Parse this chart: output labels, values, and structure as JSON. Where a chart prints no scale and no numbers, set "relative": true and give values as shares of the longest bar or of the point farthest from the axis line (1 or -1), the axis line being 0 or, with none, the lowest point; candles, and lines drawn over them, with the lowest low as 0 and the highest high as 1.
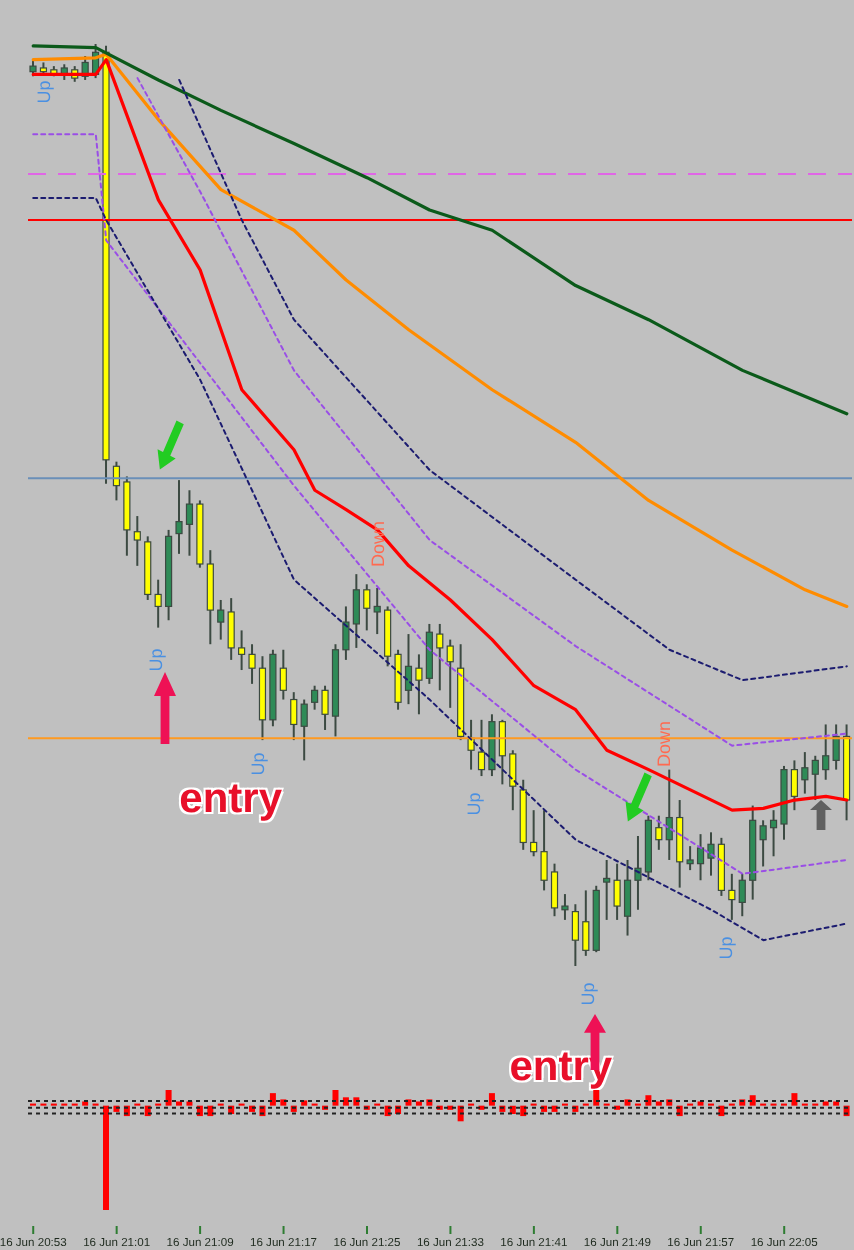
{
  "chart_data": [
    {
      "type": "candlestick",
      "relative": true,
      "tick_labels": "x",
      "categories": [
        "16 Jun 20:53",
        null,
        null,
        null,
        null,
        null,
        null,
        null,
        "16 Jun 21:01",
        null,
        null,
        null,
        null,
        null,
        null,
        null,
        "16 Jun 21:09",
        null,
        null,
        null,
        null,
        null,
        null,
        null,
        "16 Jun 21:17",
        null,
        null,
        null,
        null,
        null,
        null,
        null,
        "16 Jun 21:25",
        null,
        null,
        null,
        null,
        null,
        null,
        null,
        "16 Jun 21:33",
        null,
        null,
        null,
        null,
        null,
        null,
        null,
        "16 Jun 21:41",
        null,
        null,
        null,
        null,
        null,
        null,
        null,
        "16 Jun 21:49",
        null,
        null,
        null,
        null,
        null,
        null,
        null,
        "16 Jun 21:57",
        null,
        null,
        null,
        null,
        null,
        null,
        null,
        "16 Jun 22:05",
        null,
        null,
        null,
        null,
        null,
        null
      ],
      "ohlc": [
        [
          0.97,
          0.983,
          0.965,
          0.976
        ],
        [
          0.974,
          0.98,
          0.967,
          0.97
        ],
        [
          0.972,
          0.976,
          0.965,
          0.967
        ],
        [
          0.967,
          0.978,
          0.961,
          0.974
        ],
        [
          0.972,
          0.976,
          0.959,
          0.963
        ],
        [
          0.965,
          0.987,
          0.961,
          0.98
        ],
        [
          0.967,
          1.0,
          0.963,
          0.991
        ],
        [
          0.991,
          0.998,
          0.523,
          0.549
        ],
        [
          0.542,
          0.547,
          0.505,
          0.521
        ],
        [
          0.525,
          0.531,
          0.445,
          0.473
        ],
        [
          0.471,
          0.488,
          0.434,
          0.462
        ],
        [
          0.46,
          0.466,
          0.397,
          0.403
        ],
        [
          0.403,
          0.419,
          0.367,
          0.39
        ],
        [
          0.39,
          0.473,
          0.375,
          0.466
        ],
        [
          0.469,
          0.527,
          0.447,
          0.482
        ],
        [
          0.479,
          0.516,
          0.445,
          0.501
        ],
        [
          0.501,
          0.505,
          0.432,
          0.436
        ],
        [
          0.436,
          0.451,
          0.349,
          0.386
        ],
        [
          0.373,
          0.397,
          0.354,
          0.386
        ],
        [
          0.384,
          0.399,
          0.332,
          0.345
        ],
        [
          0.345,
          0.364,
          0.321,
          0.338
        ],
        [
          0.338,
          0.349,
          0.306,
          0.323
        ],
        [
          0.323,
          0.336,
          0.245,
          0.267
        ],
        [
          0.267,
          0.343,
          0.26,
          0.338
        ],
        [
          0.323,
          0.343,
          0.289,
          0.299
        ],
        [
          0.289,
          0.297,
          0.245,
          0.262
        ],
        [
          0.26,
          0.289,
          0.223,
          0.284
        ],
        [
          0.286,
          0.304,
          0.278,
          0.299
        ],
        [
          0.299,
          0.304,
          0.256,
          0.273
        ],
        [
          0.271,
          0.349,
          0.249,
          0.343
        ],
        [
          0.343,
          0.39,
          0.332,
          0.373
        ],
        [
          0.371,
          0.425,
          0.345,
          0.408
        ],
        [
          0.408,
          0.414,
          0.364,
          0.388
        ],
        [
          0.384,
          0.41,
          0.36,
          0.39
        ],
        [
          0.386,
          0.39,
          0.325,
          0.336
        ],
        [
          0.338,
          0.343,
          0.278,
          0.286
        ],
        [
          0.299,
          0.36,
          0.284,
          0.325
        ],
        [
          0.323,
          0.338,
          0.273,
          0.31
        ],
        [
          0.312,
          0.371,
          0.306,
          0.362
        ],
        [
          0.36,
          0.371,
          0.299,
          0.345
        ],
        [
          0.347,
          0.354,
          0.28,
          0.33
        ],
        [
          0.323,
          0.349,
          0.245,
          0.249
        ],
        [
          0.247,
          0.267,
          0.213,
          0.234
        ],
        [
          0.232,
          0.267,
          0.206,
          0.213
        ],
        [
          0.213,
          0.273,
          0.206,
          0.265
        ],
        [
          0.265,
          0.267,
          0.197,
          0.228
        ],
        [
          0.23,
          0.234,
          0.169,
          0.195
        ],
        [
          0.191,
          0.202,
          0.126,
          0.134
        ],
        [
          0.134,
          0.169,
          0.119,
          0.124
        ],
        [
          0.124,
          0.169,
          0.082,
          0.093
        ],
        [
          0.102,
          0.111,
          0.054,
          0.063
        ],
        [
          0.061,
          0.078,
          0.05,
          0.065
        ],
        [
          0.059,
          0.067,
          0.0,
          0.028
        ],
        [
          0.048,
          0.082,
          0.011,
          0.017
        ],
        [
          0.017,
          0.087,
          0.015,
          0.082
        ],
        [
          0.091,
          0.115,
          0.05,
          0.095
        ],
        [
          0.093,
          0.111,
          0.05,
          0.065
        ],
        [
          0.054,
          0.115,
          0.033,
          0.093
        ],
        [
          0.093,
          0.141,
          0.061,
          0.106
        ],
        [
          0.102,
          0.163,
          0.093,
          0.158
        ],
        [
          0.15,
          0.163,
          0.126,
          0.137
        ],
        [
          0.137,
          0.213,
          0.115,
          0.161
        ],
        [
          0.161,
          0.18,
          0.085,
          0.113
        ],
        [
          0.111,
          0.13,
          0.104,
          0.115
        ],
        [
          0.111,
          0.143,
          0.093,
          0.128
        ],
        [
          0.117,
          0.145,
          0.098,
          0.132
        ],
        [
          0.132,
          0.139,
          0.076,
          0.082
        ],
        [
          0.082,
          0.1,
          0.05,
          0.072
        ],
        [
          0.069,
          0.1,
          0.054,
          0.093
        ],
        [
          0.093,
          0.174,
          0.072,
          0.158
        ],
        [
          0.137,
          0.158,
          0.108,
          0.152
        ],
        [
          0.15,
          0.169,
          0.119,
          0.158
        ],
        [
          0.154,
          0.217,
          0.137,
          0.213
        ],
        [
          0.213,
          0.223,
          0.169,
          0.184
        ],
        [
          0.202,
          0.232,
          0.187,
          0.215
        ],
        [
          0.208,
          0.228,
          0.18,
          0.223
        ],
        [
          0.213,
          0.262,
          0.202,
          0.228
        ],
        [
          0.223,
          0.262,
          0.213,
          0.249
        ],
        [
          0.249,
          0.262,
          0.158,
          0.18
        ]
      ],
      "colors": [
        "#2e8b57",
        "#ffff00",
        "#ffff00",
        "#2e8b57",
        "#ffff00",
        "#2e8b57",
        "#2e8b57",
        "#ffff00",
        "#ffff00",
        "#ffff00",
        "#ffff00",
        "#ffff00",
        "#ffff00",
        "#2e8b57",
        "#2e8b57",
        "#2e8b57",
        "#ffff00",
        "#ffff00",
        "#2e8b57",
        "#ffff00",
        "#ffff00",
        "#ffff00",
        "#ffff00",
        "#2e8b57",
        "#ffff00",
        "#ffff00",
        "#2e8b57",
        "#2e8b57",
        "#ffff00",
        "#2e8b57",
        "#2e8b57",
        "#2e8b57",
        "#ffff00",
        "#2e8b57",
        "#ffff00",
        "#ffff00",
        "#2e8b57",
        "#ffff00",
        "#2e8b57",
        "#ffff00",
        "#ffff00",
        "#ffff00",
        "#ffff00",
        "#ffff00",
        "#2e8b57",
        "#ffff00",
        "#ffff00",
        "#ffff00",
        "#ffff00",
        "#ffff00",
        "#ffff00",
        "#2e8b57",
        "#ffff00",
        "#ffff00",
        "#2e8b57",
        "#2e8b57",
        "#ffff00",
        "#2e8b57",
        "#2e8b57",
        "#2e8b57",
        "#ffff00",
        "#2e8b57",
        "#ffff00",
        "#2e8b57",
        "#2e8b57",
        "#2e8b57",
        "#ffff00",
        "#ffff00",
        "#2e8b57",
        "#2e8b57",
        "#2e8b57",
        "#2e8b57",
        "#2e8b57",
        "#ffff00",
        "#2e8b57",
        "#2e8b57",
        "#2e8b57",
        "#2e8b57",
        "#ffff00"
      ],
      "series": [
        {
          "type": "line",
          "color": "#ff0000",
          "line_style": "solid",
          "values": [
            0.967,
            null,
            null,
            null,
            null,
            null,
            0.967,
            0.983,
            null,
            null,
            null,
            null,
            0.831,
            null,
            null,
            null,
            0.755,
            null,
            null,
            null,
            0.625,
            null,
            null,
            null,
            null,
            0.56,
            null,
            0.516,
            null,
            null,
            0.495,
            null,
            null,
            0.473,
            null,
            null,
            0.434,
            null,
            null,
            null,
            0.397,
            null,
            null,
            null,
            0.354,
            null,
            null,
            null,
            0.304,
            null,
            null,
            null,
            0.278,
            null,
            null,
            0.234,
            null,
            null,
            null,
            0.213,
            null,
            null,
            null,
            0.191,
            null,
            null,
            null,
            0.169,
            null,
            null,
            0.171,
            null,
            null,
            0.18,
            null,
            null,
            0.184,
            null,
            0.18
          ]
        },
        {
          "type": "line",
          "color": "#ff8c00",
          "line_style": "solid",
          "values": [
            0.983,
            null,
            null,
            null,
            null,
            null,
            0.985,
            0.989,
            null,
            null,
            null,
            null,
            0.918,
            null,
            null,
            null,
            null,
            null,
            0.842,
            null,
            null,
            null,
            null,
            null,
            null,
            0.798,
            null,
            null,
            null,
            null,
            0.744,
            null,
            null,
            null,
            null,
            null,
            0.69,
            null,
            null,
            null,
            null,
            null,
            null,
            null,
            0.625,
            null,
            null,
            null,
            null,
            null,
            null,
            null,
            0.568,
            null,
            null,
            null,
            null,
            null,
            null,
            0.505,
            null,
            null,
            null,
            null,
            null,
            null,
            null,
            0.451,
            null,
            null,
            null,
            null,
            null,
            null,
            0.408,
            null,
            null,
            null,
            0.39
          ]
        },
        {
          "type": "line",
          "color": "#0b5a1a",
          "line_style": "solid",
          "values": [
            0.998,
            null,
            null,
            null,
            null,
            null,
            0.996,
            null,
            null,
            null,
            null,
            null,
            0.961,
            null,
            null,
            null,
            null,
            null,
            0.928,
            null,
            null,
            null,
            null,
            null,
            null,
            0.892,
            null,
            null,
            null,
            null,
            null,
            null,
            0.855,
            null,
            null,
            null,
            null,
            null,
            0.82,
            null,
            null,
            null,
            null,
            null,
            0.798,
            null,
            null,
            null,
            null,
            null,
            null,
            null,
            0.738,
            null,
            null,
            null,
            null,
            null,
            null,
            0.701,
            null,
            null,
            null,
            null,
            null,
            null,
            null,
            null,
            0.646,
            null,
            null,
            null,
            null,
            null,
            null,
            null,
            null,
            null,
            0.599
          ]
        },
        {
          "type": "line",
          "color": "#9a4ee6",
          "line_style": "dotted",
          "values": [
            null,
            null,
            null,
            null,
            null,
            null,
            null,
            null,
            null,
            null,
            0.963,
            null,
            null,
            null,
            null,
            null,
            0.84,
            null,
            null,
            null,
            null,
            null,
            null,
            null,
            null,
            0.646,
            null,
            null,
            null,
            null,
            null,
            null,
            null,
            null,
            null,
            null,
            null,
            null,
            0.462,
            null,
            null,
            null,
            null,
            null,
            null,
            null,
            null,
            null,
            null,
            null,
            null,
            null,
            0.347,
            null,
            null,
            null,
            null,
            null,
            null,
            null,
            null,
            null,
            null,
            null,
            null,
            null,
            null,
            0.239,
            null,
            null,
            null,
            null,
            null,
            null,
            null,
            null,
            null,
            null,
            0.252
          ]
        },
        {
          "type": "line",
          "color": "#9a4ee6",
          "line_style": "dotted",
          "values": [
            0.902,
            null,
            null,
            null,
            null,
            null,
            0.902,
            0.787,
            null,
            null,
            null,
            null,
            null,
            null,
            null,
            null,
            null,
            null,
            null,
            null,
            null,
            null,
            null,
            null,
            null,
            0.521,
            null,
            null,
            null,
            null,
            null,
            null,
            null,
            null,
            null,
            null,
            null,
            null,
            0.343,
            null,
            null,
            null,
            null,
            null,
            null,
            null,
            null,
            null,
            null,
            null,
            null,
            null,
            0.213,
            null,
            null,
            null,
            null,
            null,
            null,
            null,
            null,
            null,
            null,
            null,
            null,
            null,
            null,
            null,
            0.1,
            null,
            null,
            null,
            null,
            null,
            null,
            null,
            null,
            null,
            0.115
          ]
        },
        {
          "type": "line",
          "color": "#1c1c70",
          "line_style": "dotted",
          "values": [
            null,
            null,
            null,
            null,
            null,
            null,
            null,
            null,
            null,
            null,
            null,
            null,
            null,
            null,
            0.961,
            null,
            null,
            null,
            null,
            null,
            0.809,
            null,
            null,
            null,
            null,
            0.701,
            null,
            null,
            null,
            null,
            null,
            null,
            null,
            null,
            null,
            null,
            null,
            null,
            0.538,
            null,
            null,
            null,
            null,
            null,
            null,
            null,
            null,
            null,
            null,
            null,
            null,
            null,
            0.419,
            null,
            null,
            null,
            null,
            null,
            null,
            null,
            null,
            0.343,
            null,
            null,
            null,
            null,
            null,
            null,
            0.31,
            null,
            null,
            null,
            null,
            null,
            null,
            null,
            null,
            null,
            0.325
          ]
        },
        {
          "type": "line",
          "color": "#1c1c70",
          "line_style": "dotted",
          "values": [
            0.833,
            null,
            null,
            null,
            null,
            null,
            0.833,
            0.809,
            null,
            null,
            null,
            null,
            null,
            null,
            null,
            null,
            0.636,
            null,
            null,
            null,
            null,
            null,
            null,
            null,
            null,
            0.419,
            null,
            null,
            null,
            null,
            null,
            null,
            null,
            null,
            null,
            null,
            null,
            null,
            0.289,
            null,
            null,
            null,
            null,
            null,
            null,
            null,
            null,
            null,
            null,
            null,
            null,
            null,
            0.137,
            null,
            null,
            null,
            null,
            null,
            null,
            null,
            null,
            null,
            null,
            null,
            null,
            0.061,
            null,
            null,
            null,
            null,
            0.028,
            null,
            null,
            null,
            null,
            null,
            null,
            null,
            0.046
          ]
        }
      ],
      "ref_lines": [
        {
          "axis": "y",
          "value": 0.859,
          "color": "#e066e6",
          "line_style": "dashed"
        },
        {
          "axis": "y",
          "value": 0.809,
          "color": "#ff0000",
          "line_style": "solid"
        },
        {
          "axis": "y",
          "value": 0.529,
          "color": "#6a8fb8",
          "line_style": "solid"
        },
        {
          "axis": "y",
          "value": 0.247,
          "color": "#ff9a20",
          "line_style": "solid"
        }
      ],
      "annotations": [
        "Up",
        "Up",
        "Up",
        "Up",
        "Up",
        "Up",
        "Down",
        "Down",
        "entry",
        "entry"
      ]
    },
    {
      "type": "bar",
      "relative": true,
      "tick_labels": false,
      "color": "#ff0000",
      "categories": [
        null,
        null,
        null,
        null,
        null,
        null,
        null,
        null,
        null,
        null,
        null,
        null,
        null,
        null,
        null,
        null,
        null,
        null,
        null,
        null,
        null,
        null,
        null,
        null,
        null,
        null,
        null,
        null,
        null,
        null,
        null,
        null,
        null,
        null,
        null,
        null,
        null,
        null,
        null,
        null,
        null,
        null,
        null,
        null,
        null,
        null,
        null,
        null,
        null,
        null,
        null,
        null,
        null,
        null,
        null,
        null,
        null,
        null,
        null,
        null,
        null,
        null,
        null,
        null,
        null,
        null,
        null,
        null,
        null,
        null,
        null,
        null,
        null,
        null,
        null,
        null,
        null,
        null,
        null
      ],
      "values": [
        0.02,
        0.02,
        0.02,
        0.02,
        0.02,
        0.04,
        0.02,
        -1,
        -0.06,
        -0.1,
        0.02,
        -0.1,
        0.02,
        0.15,
        0.04,
        0.04,
        -0.1,
        -0.1,
        0.02,
        -0.08,
        0.02,
        -0.06,
        -0.1,
        0.12,
        0.06,
        -0.06,
        0.05,
        0.02,
        -0.04,
        0.15,
        0.08,
        0.08,
        -0.04,
        0.02,
        -0.1,
        -0.08,
        0.06,
        0.04,
        0.06,
        -0.04,
        -0.04,
        -0.15,
        0.02,
        -0.04,
        0.12,
        -0.06,
        -0.08,
        -0.1,
        0.02,
        -0.06,
        -0.06,
        0.02,
        -0.06,
        0.02,
        0.15,
        0.02,
        -0.04,
        0.06,
        0.02,
        0.1,
        0.04,
        0.06,
        -0.1,
        0.02,
        0.04,
        0.02,
        -0.1,
        0.02,
        0.06,
        0.1,
        0.02,
        0.02,
        0.02,
        0.12,
        0.02,
        0.02,
        0.04,
        0.04,
        -0.1
      ],
      "ref_lines": [
        {
          "axis": "y",
          "value": 0.045,
          "color": "#222222",
          "line_style": "dotted"
        },
        {
          "axis": "y",
          "value": -0.02,
          "color": "#222222",
          "line_style": "dotted"
        },
        {
          "axis": "y",
          "value": -0.075,
          "color": "#222222",
          "line_style": "dotted"
        }
      ]
    }
  ]
}
